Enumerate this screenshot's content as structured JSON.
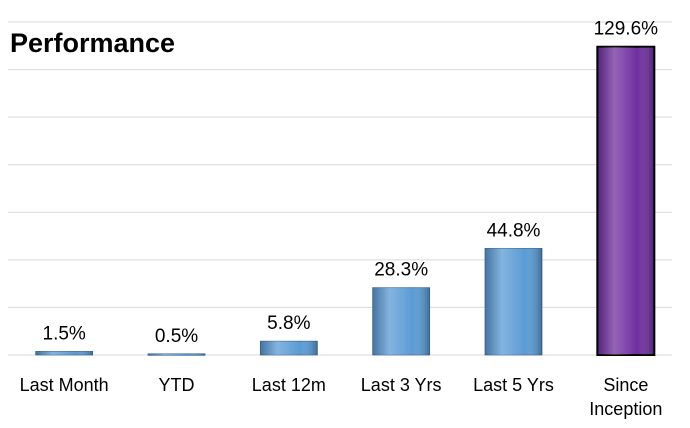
{
  "chart_data": {
    "type": "bar",
    "title": "Performance",
    "categories": [
      "Last Month",
      "YTD",
      "Last 12m",
      "Last 3 Yrs",
      "Last 5 Yrs",
      "Since Inception"
    ],
    "values": [
      1.5,
      0.5,
      5.8,
      28.3,
      44.8,
      129.6
    ],
    "value_labels": [
      "1.5%",
      "0.5%",
      "5.8%",
      "28.3%",
      "44.8%",
      "129.6%"
    ],
    "colors": [
      "#5b9bd5",
      "#5b9bd5",
      "#5b9bd5",
      "#5b9bd5",
      "#5b9bd5",
      "#7030a0"
    ],
    "ylim": [
      0,
      140
    ],
    "yticks": [
      0,
      20,
      40,
      60,
      80,
      100,
      120,
      140
    ],
    "grid": true
  }
}
